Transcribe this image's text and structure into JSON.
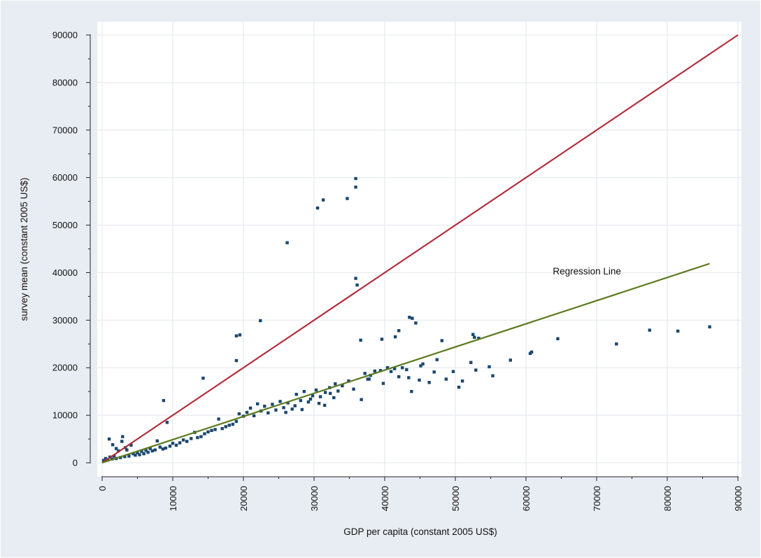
{
  "chart_data": {
    "type": "scatter",
    "title": "",
    "xlabel": "GDP per capita (constant 2005 US$)",
    "ylabel": "survey mean (constant 2005 US$)",
    "xlim": [
      0,
      90000
    ],
    "ylim": [
      0,
      90000
    ],
    "xticks": [
      0,
      10000,
      20000,
      30000,
      40000,
      50000,
      60000,
      70000,
      80000,
      90000
    ],
    "yticks": [
      0,
      10000,
      20000,
      30000,
      40000,
      50000,
      60000,
      70000,
      80000,
      90000
    ],
    "grid": true,
    "background": "#e8edf3",
    "plot_background": "#ffffff",
    "annotations": [
      {
        "text": "Regression Line",
        "x": 63800,
        "y": 39600
      }
    ],
    "series": [
      {
        "kind": "points",
        "color": "#1a476f",
        "points": [
          [
            35900,
            59800
          ],
          [
            35900,
            58000
          ],
          [
            31300,
            55300
          ],
          [
            34700,
            55600
          ],
          [
            30500,
            53600
          ],
          [
            26200,
            46300
          ],
          [
            35900,
            38800
          ],
          [
            36100,
            37400
          ],
          [
            22400,
            29900
          ],
          [
            19500,
            26900
          ],
          [
            19000,
            26700
          ],
          [
            14300,
            17800
          ],
          [
            19000,
            21500
          ],
          [
            8700,
            13100
          ],
          [
            36600,
            25800
          ],
          [
            39600,
            26000
          ],
          [
            41500,
            26500
          ],
          [
            42000,
            27800
          ],
          [
            43500,
            30600
          ],
          [
            43900,
            30400
          ],
          [
            44400,
            29400
          ],
          [
            48100,
            25700
          ],
          [
            52500,
            27000
          ],
          [
            52700,
            26400
          ],
          [
            53300,
            26200
          ],
          [
            64500,
            26100
          ],
          [
            72800,
            25000
          ],
          [
            77500,
            27900
          ],
          [
            81500,
            27700
          ],
          [
            86000,
            28600
          ],
          [
            47400,
            21700
          ],
          [
            48700,
            17600
          ],
          [
            46300,
            16900
          ],
          [
            45400,
            20800
          ],
          [
            45100,
            20400
          ],
          [
            43400,
            17900
          ],
          [
            43100,
            19600
          ],
          [
            42500,
            20000
          ],
          [
            42000,
            18100
          ],
          [
            41400,
            19800
          ],
          [
            40900,
            19200
          ],
          [
            39800,
            16700
          ],
          [
            38600,
            19300
          ],
          [
            37800,
            17600
          ],
          [
            37200,
            18800
          ],
          [
            36700,
            13300
          ],
          [
            35600,
            15500
          ],
          [
            34900,
            17200
          ],
          [
            34000,
            16200
          ],
          [
            33400,
            15100
          ],
          [
            32800,
            13700
          ],
          [
            32200,
            15800
          ],
          [
            31600,
            14800
          ],
          [
            30900,
            13900
          ],
          [
            30300,
            15300
          ],
          [
            29800,
            14100
          ],
          [
            29200,
            12800
          ],
          [
            28600,
            15000
          ],
          [
            28100,
            13100
          ],
          [
            27500,
            14400
          ],
          [
            26900,
            11300
          ],
          [
            26300,
            12600
          ],
          [
            25700,
            11600
          ],
          [
            25200,
            12900
          ],
          [
            24600,
            11100
          ],
          [
            24100,
            12300
          ],
          [
            23500,
            10500
          ],
          [
            23000,
            11900
          ],
          [
            22500,
            10900
          ],
          [
            22000,
            12400
          ],
          [
            21500,
            9900
          ],
          [
            21000,
            11500
          ],
          [
            20500,
            10600
          ],
          [
            20000,
            9800
          ],
          [
            19400,
            10300
          ],
          [
            19000,
            8700
          ],
          [
            18500,
            8100
          ],
          [
            18000,
            7900
          ],
          [
            17500,
            7600
          ],
          [
            17000,
            7200
          ],
          [
            16500,
            9200
          ],
          [
            16000,
            7000
          ],
          [
            15500,
            6800
          ],
          [
            15000,
            6500
          ],
          [
            14500,
            6100
          ],
          [
            14000,
            5500
          ],
          [
            13500,
            5300
          ],
          [
            13100,
            6400
          ],
          [
            12600,
            5100
          ],
          [
            12000,
            4500
          ],
          [
            11500,
            4800
          ],
          [
            11000,
            4200
          ],
          [
            10500,
            3700
          ],
          [
            10000,
            4100
          ],
          [
            9600,
            3500
          ],
          [
            9200,
            8500
          ],
          [
            9000,
            3100
          ],
          [
            8600,
            2900
          ],
          [
            8200,
            3300
          ],
          [
            7800,
            4600
          ],
          [
            7500,
            2700
          ],
          [
            7100,
            2500
          ],
          [
            6800,
            3000
          ],
          [
            6500,
            2200
          ],
          [
            6200,
            2600
          ],
          [
            5900,
            1900
          ],
          [
            5600,
            2400
          ],
          [
            5300,
            1700
          ],
          [
            5000,
            2100
          ],
          [
            4700,
            1600
          ],
          [
            4400,
            1900
          ],
          [
            4100,
            3700
          ],
          [
            3800,
            1400
          ],
          [
            3500,
            2700
          ],
          [
            3200,
            1300
          ],
          [
            2900,
            5500
          ],
          [
            2600,
            1100
          ],
          [
            2300,
            2500
          ],
          [
            2000,
            900
          ],
          [
            1700,
            1400
          ],
          [
            1400,
            800
          ],
          [
            1100,
            1200
          ],
          [
            800,
            600
          ],
          [
            500,
            900
          ],
          [
            200,
            500
          ],
          [
            1000,
            5000
          ],
          [
            1500,
            3800
          ],
          [
            2800,
            4500
          ],
          [
            3300,
            3200
          ],
          [
            2000,
            3000
          ],
          [
            52200,
            21100
          ],
          [
            52900,
            19500
          ],
          [
            54800,
            20200
          ],
          [
            57800,
            21600
          ],
          [
            60600,
            23000
          ],
          [
            60800,
            23300
          ],
          [
            55300,
            18300
          ],
          [
            51000,
            17200
          ],
          [
            50500,
            15900
          ],
          [
            49700,
            19200
          ],
          [
            47000,
            19100
          ],
          [
            44900,
            17400
          ],
          [
            43800,
            15000
          ],
          [
            40400,
            20000
          ],
          [
            39400,
            19400
          ],
          [
            38000,
            18400
          ],
          [
            37600,
            17600
          ],
          [
            33000,
            16600
          ],
          [
            32300,
            14600
          ],
          [
            31500,
            12100
          ],
          [
            30700,
            12500
          ],
          [
            29500,
            13400
          ],
          [
            28300,
            11200
          ],
          [
            27300,
            12000
          ],
          [
            26000,
            10600
          ]
        ]
      },
      {
        "kind": "line",
        "color": "#b22f3d",
        "points": [
          [
            0,
            0
          ],
          [
            90000,
            90000
          ]
        ]
      },
      {
        "kind": "line",
        "name": "Regression Line",
        "color": "#5c7a1e",
        "points": [
          [
            0,
            0
          ],
          [
            86000,
            41900
          ]
        ]
      }
    ]
  }
}
